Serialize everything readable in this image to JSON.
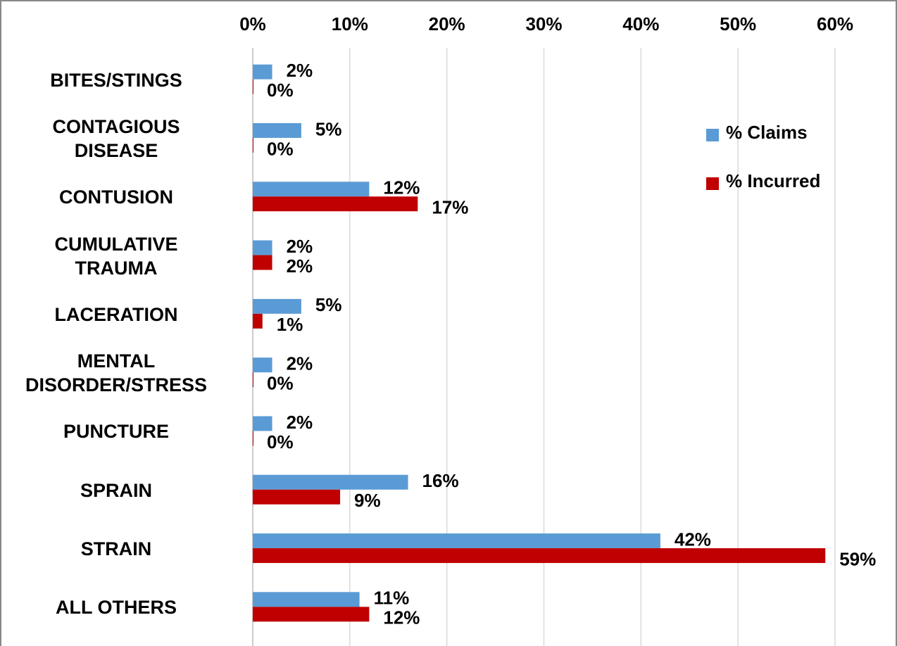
{
  "chart_data": {
    "type": "bar",
    "orientation": "horizontal",
    "categories": [
      "BITES/STINGS",
      "CONTAGIOUS\nDISEASE",
      "CONTUSION",
      "CUMULATIVE\nTRAUMA",
      "LACERATION",
      "MENTAL\nDISORDER/STRESS",
      "PUNCTURE",
      "SPRAIN",
      "STRAIN",
      "ALL OTHERS"
    ],
    "series": [
      {
        "name": "% Claims",
        "color": "#5b9bd5",
        "values": [
          2,
          5,
          12,
          2,
          5,
          2,
          2,
          16,
          42,
          11
        ],
        "value_labels": [
          "2%",
          "5%",
          "12%",
          "2%",
          "5%",
          "2%",
          "2%",
          "16%",
          "42%",
          "11%"
        ]
      },
      {
        "name": "% Incurred",
        "color": "#c00000",
        "values": [
          0,
          0,
          17,
          2,
          1,
          0,
          0,
          9,
          59,
          12
        ],
        "value_labels": [
          "0%",
          "0%",
          "17%",
          "2%",
          "1%",
          "0%",
          "0%",
          "9%",
          "59%",
          "12%"
        ]
      }
    ],
    "xlim": [
      0,
      60
    ],
    "xticks": [
      {
        "value": 0,
        "label": "0%"
      },
      {
        "value": 10,
        "label": "10%"
      },
      {
        "value": 20,
        "label": "20%"
      },
      {
        "value": 30,
        "label": "30%"
      },
      {
        "value": 40,
        "label": "40%"
      },
      {
        "value": 50,
        "label": "50%"
      },
      {
        "value": 60,
        "label": "60%"
      }
    ],
    "grid": true
  }
}
